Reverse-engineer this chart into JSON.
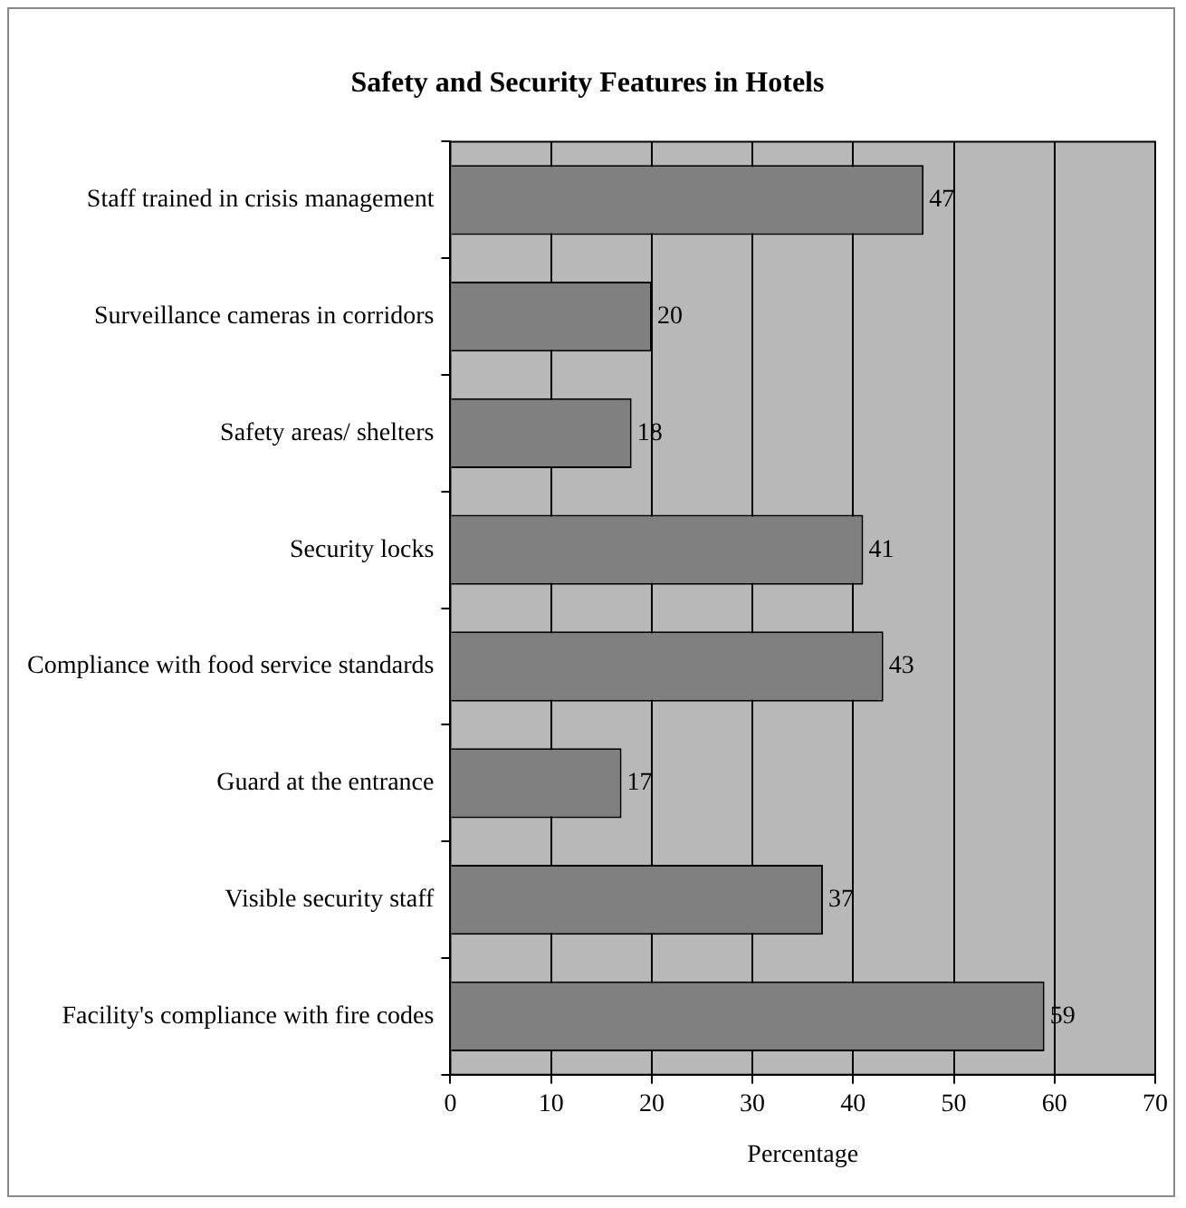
{
  "chart_data": {
    "type": "bar",
    "orientation": "horizontal",
    "title": "Safety and Security Features in Hotels",
    "xlabel": "Percentage",
    "categories": [
      "Staff trained in crisis management",
      "Surveillance cameras in corridors",
      "Safety areas/ shelters",
      "Security locks",
      "Compliance with food service standards",
      "Guard at the entrance",
      "Visible security staff",
      "Facility's compliance with fire codes"
    ],
    "values": [
      47,
      20,
      18,
      41,
      43,
      17,
      37,
      59
    ],
    "color": "#808080",
    "xlim": [
      0,
      70
    ],
    "xticks": [
      0,
      10,
      20,
      30,
      40,
      50,
      60,
      70
    ],
    "grid": "x",
    "legend": false,
    "data_labels": true
  }
}
